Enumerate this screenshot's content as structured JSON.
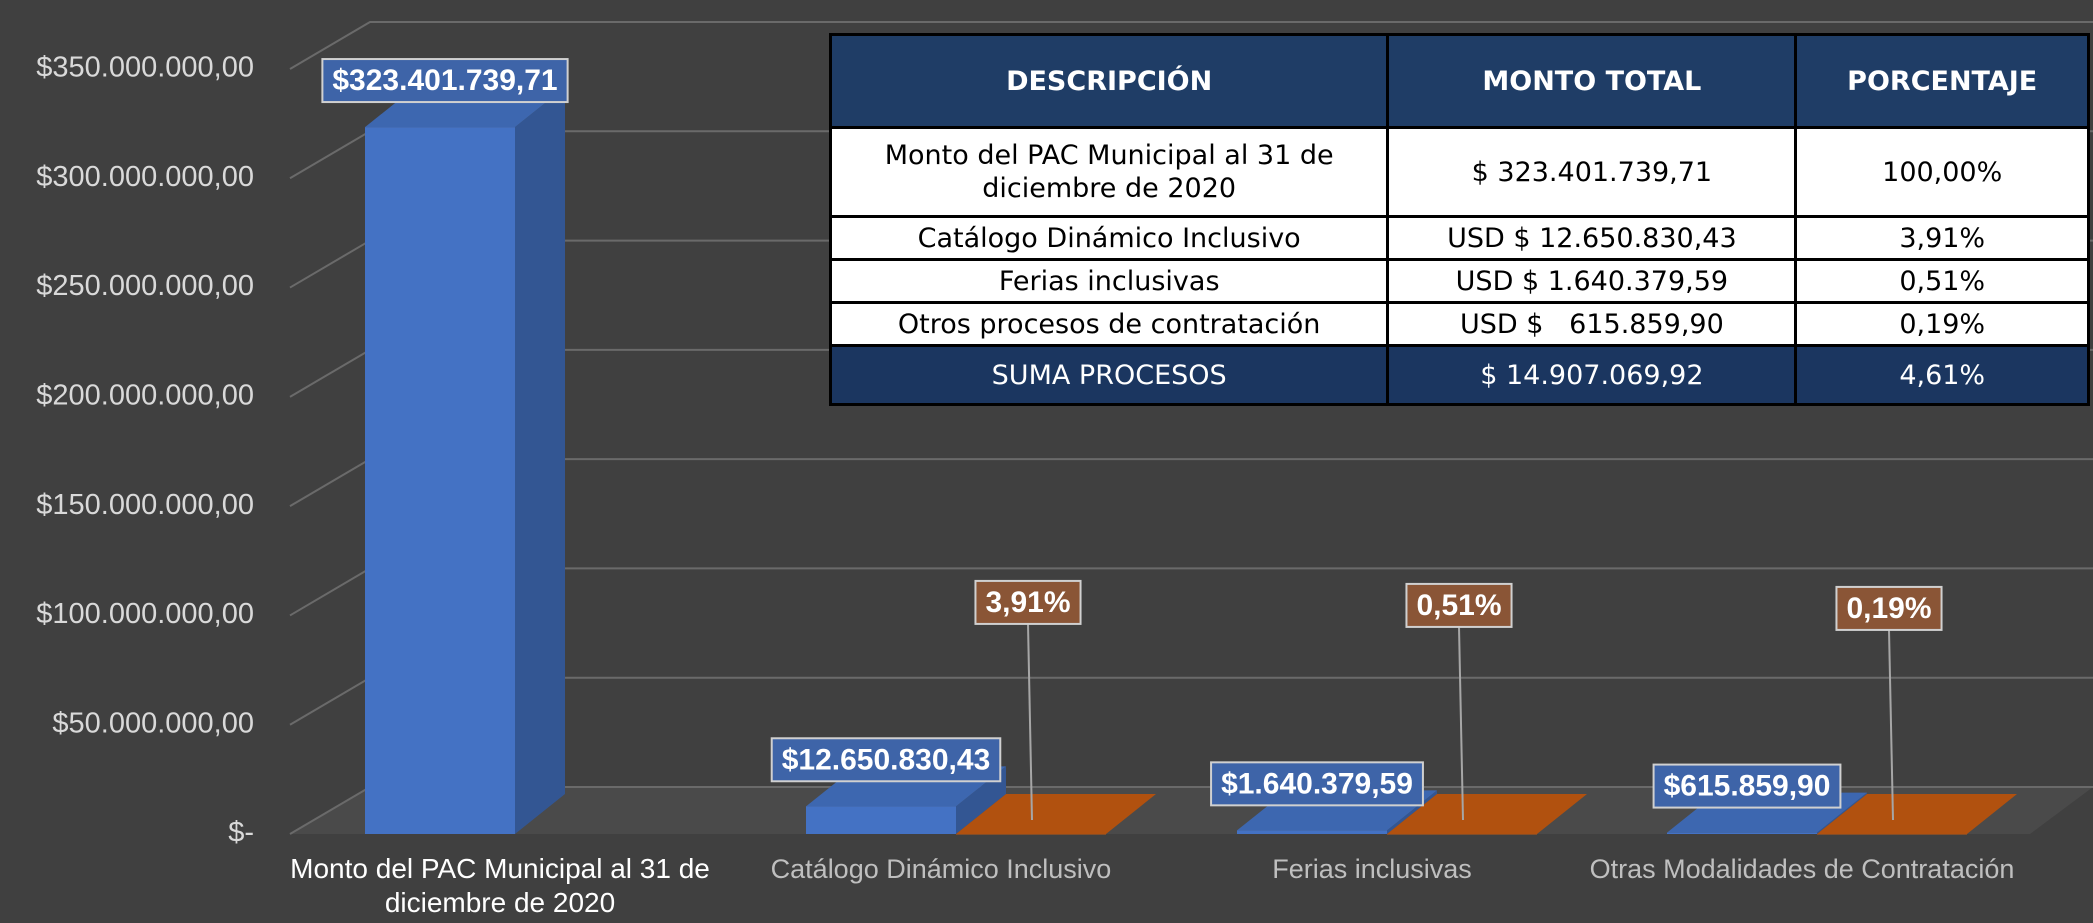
{
  "chart_data": {
    "type": "bar3d",
    "categories": [
      "Monto del PAC Municipal al 31 de diciembre de 2020",
      "Catálogo Dinámico Inclusivo",
      "Ferias inclusivas",
      "Otras Modalidades de Contratación"
    ],
    "series": [
      {
        "color": "#4472c4",
        "values": [
          323401739.71,
          12650830.43,
          1640379.59,
          615859.9
        ],
        "value_labels": [
          "$323.401.739,71",
          "$12.650.830,43",
          "$1.640.379,59",
          "$615.859,90"
        ]
      },
      {
        "color": "#c55a11",
        "values": [
          null,
          3.91,
          0.51,
          0.19
        ],
        "value_labels": [
          null,
          "3,91%",
          "0,51%",
          "0,19%"
        ]
      }
    ],
    "ylim": [
      0,
      350000000
    ],
    "yticks": [
      {
        "value": 0,
        "label": "$-"
      },
      {
        "value": 50000000,
        "label": "$50.000.000,00"
      },
      {
        "value": 100000000,
        "label": "$100.000.000,00"
      },
      {
        "value": 150000000,
        "label": "$150.000.000,00"
      },
      {
        "value": 200000000,
        "label": "$200.000.000,00"
      },
      {
        "value": 250000000,
        "label": "$250.000.000,00"
      },
      {
        "value": 300000000,
        "label": "$300.000.000,00"
      },
      {
        "value": 350000000,
        "label": "$350.000.000,00"
      }
    ],
    "grid": true
  },
  "table": {
    "header": [
      "DESCRIPCIÓN",
      "MONTO TOTAL",
      "PORCENTAJE"
    ],
    "rows": [
      [
        "Monto del PAC Municipal al 31 de diciembre de 2020",
        "$ 323.401.739,71",
        "100,00%"
      ],
      [
        "Catálogo Dinámico Inclusivo",
        "USD $ 12.650.830,43",
        "3,91%"
      ],
      [
        "Ferias inclusivas",
        "USD $ 1.640.379,59",
        "0,51%"
      ],
      [
        "Otros procesos de contratación",
        "USD $   615.859,90",
        "0,19%"
      ]
    ],
    "footer": [
      "SUMA PROCESOS",
      "$ 14.907.069,92",
      "4,61%"
    ]
  }
}
